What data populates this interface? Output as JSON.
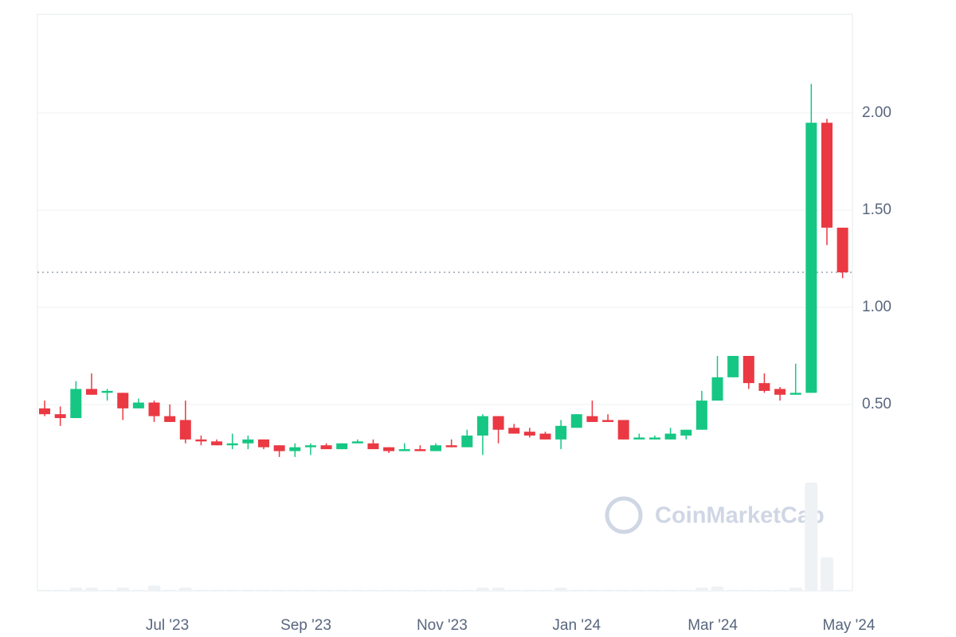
{
  "chart_data": {
    "type": "candlestick",
    "watermark": "CoinMarketCap",
    "x": [
      0,
      1,
      2,
      3,
      4,
      5,
      6,
      7,
      8,
      9,
      10,
      11,
      12,
      13,
      14,
      15,
      16,
      17,
      18,
      19,
      20,
      21,
      22,
      23,
      24,
      25,
      26,
      27,
      28,
      29,
      30,
      31,
      32,
      33,
      34,
      35,
      36,
      37,
      38,
      39,
      40,
      41,
      42,
      43,
      44,
      45,
      46,
      47,
      48,
      49,
      50,
      51
    ],
    "open": [
      0.48,
      0.45,
      0.43,
      0.58,
      0.56,
      0.56,
      0.48,
      0.51,
      0.44,
      0.42,
      0.32,
      0.31,
      0.29,
      0.3,
      0.32,
      0.29,
      0.26,
      0.28,
      0.29,
      0.27,
      0.3,
      0.3,
      0.28,
      0.26,
      0.27,
      0.26,
      0.29,
      0.28,
      0.34,
      0.44,
      0.38,
      0.36,
      0.35,
      0.32,
      0.38,
      0.44,
      0.42,
      0.42,
      0.32,
      0.32,
      0.32,
      0.34,
      0.37,
      0.52,
      0.64,
      0.75,
      0.61,
      0.58,
      0.55,
      0.56,
      1.95,
      1.41
    ],
    "high": [
      0.52,
      0.49,
      0.62,
      0.66,
      0.58,
      0.56,
      0.53,
      0.52,
      0.5,
      0.52,
      0.34,
      0.32,
      0.35,
      0.34,
      0.32,
      0.29,
      0.3,
      0.3,
      0.3,
      0.3,
      0.32,
      0.32,
      0.28,
      0.3,
      0.29,
      0.3,
      0.32,
      0.37,
      0.45,
      0.44,
      0.4,
      0.38,
      0.36,
      0.42,
      0.45,
      0.52,
      0.45,
      0.42,
      0.35,
      0.34,
      0.38,
      0.37,
      0.57,
      0.75,
      0.75,
      0.75,
      0.66,
      0.59,
      0.71,
      2.15,
      1.97,
      1.41
    ],
    "low": [
      0.44,
      0.39,
      0.43,
      0.55,
      0.52,
      0.42,
      0.48,
      0.41,
      0.41,
      0.3,
      0.29,
      0.29,
      0.27,
      0.27,
      0.27,
      0.23,
      0.23,
      0.24,
      0.27,
      0.27,
      0.3,
      0.27,
      0.25,
      0.26,
      0.26,
      0.26,
      0.28,
      0.28,
      0.24,
      0.3,
      0.35,
      0.33,
      0.32,
      0.27,
      0.38,
      0.41,
      0.41,
      0.32,
      0.32,
      0.32,
      0.32,
      0.32,
      0.37,
      0.52,
      0.64,
      0.58,
      0.56,
      0.52,
      0.55,
      0.56,
      1.32,
      1.15
    ],
    "close": [
      0.45,
      0.43,
      0.58,
      0.55,
      0.57,
      0.48,
      0.51,
      0.44,
      0.41,
      0.32,
      0.31,
      0.29,
      0.3,
      0.32,
      0.28,
      0.26,
      0.28,
      0.29,
      0.27,
      0.3,
      0.31,
      0.27,
      0.26,
      0.27,
      0.26,
      0.29,
      0.28,
      0.34,
      0.44,
      0.37,
      0.35,
      0.34,
      0.32,
      0.39,
      0.45,
      0.41,
      0.41,
      0.32,
      0.33,
      0.33,
      0.35,
      0.37,
      0.52,
      0.64,
      0.75,
      0.61,
      0.57,
      0.55,
      0.56,
      1.95,
      1.41,
      1.18
    ],
    "volume": [
      0.01,
      0.01,
      0.03,
      0.03,
      0.01,
      0.03,
      0.01,
      0.05,
      0.01,
      0.03,
      0.01,
      0.01,
      0.01,
      0.01,
      0.01,
      0.01,
      0.01,
      0.01,
      0.01,
      0.01,
      0.01,
      0.01,
      0.01,
      0.01,
      0.01,
      0.01,
      0.01,
      0.01,
      0.03,
      0.03,
      0.01,
      0.01,
      0.01,
      0.03,
      0.01,
      0.01,
      0.01,
      0.01,
      0.01,
      0.01,
      0.01,
      0.01,
      0.03,
      0.04,
      0.01,
      0.01,
      0.01,
      0.01,
      0.03,
      1.0,
      0.31,
      0.01
    ],
    "up_color": "#16c784",
    "down_color": "#ea3943",
    "volume_color": "#eff2f5",
    "current_price": 1.18,
    "xlim": [
      -0.46,
      51.63
    ],
    "xticks": [
      {
        "value": 7.84,
        "label": "Jul '23"
      },
      {
        "value": 16.7,
        "label": "Sep '23"
      },
      {
        "value": 25.4,
        "label": "Nov '23"
      },
      {
        "value": 34.0,
        "label": "Jan '24"
      },
      {
        "value": 42.7,
        "label": "Mar '24"
      },
      {
        "value": 51.4,
        "label": "May '24"
      }
    ],
    "ylim": [
      -0.459,
      2.508
    ],
    "yticks": [
      {
        "value": 0.5,
        "label": "0.50"
      },
      {
        "value": 1.0,
        "label": "1.00"
      },
      {
        "value": 1.5,
        "label": "1.50"
      },
      {
        "value": 2.0,
        "label": "2.00"
      }
    ],
    "grid": true
  }
}
